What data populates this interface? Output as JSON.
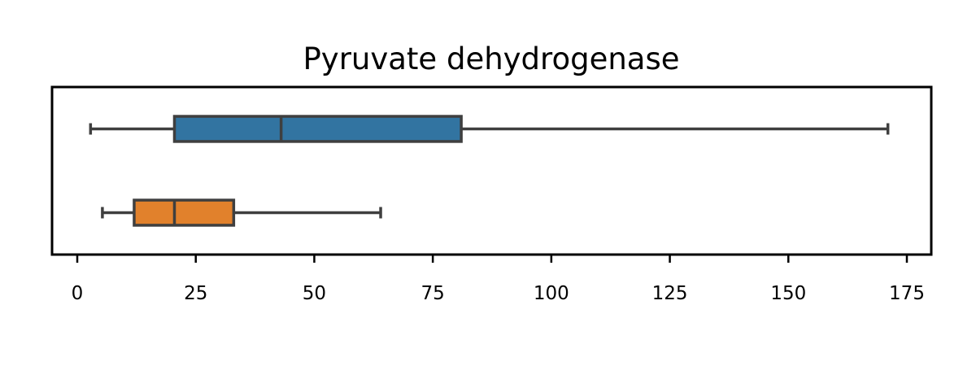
{
  "chart_data": {
    "type": "boxplot",
    "orientation": "horizontal",
    "title": "Pyruvate dehydrogenase",
    "xlabel": "",
    "ylabel": "",
    "xlim": [
      -5,
      180
    ],
    "x_ticks": [
      0,
      25,
      50,
      75,
      100,
      125,
      150,
      175
    ],
    "x_tick_labels": [
      "0",
      "25",
      "50",
      "75",
      "100",
      "125",
      "150",
      "175"
    ],
    "grid": false,
    "series": [
      {
        "whisker_low": 2.8,
        "q1": 20.5,
        "median": 43,
        "q3": 81,
        "whisker_high": 171,
        "color": "#3274a1"
      },
      {
        "whisker_low": 5.3,
        "q1": 12,
        "median": 20.5,
        "q3": 33,
        "whisker_high": 64,
        "color": "#e1812c"
      }
    ],
    "line_color": "#3f3f3f"
  }
}
